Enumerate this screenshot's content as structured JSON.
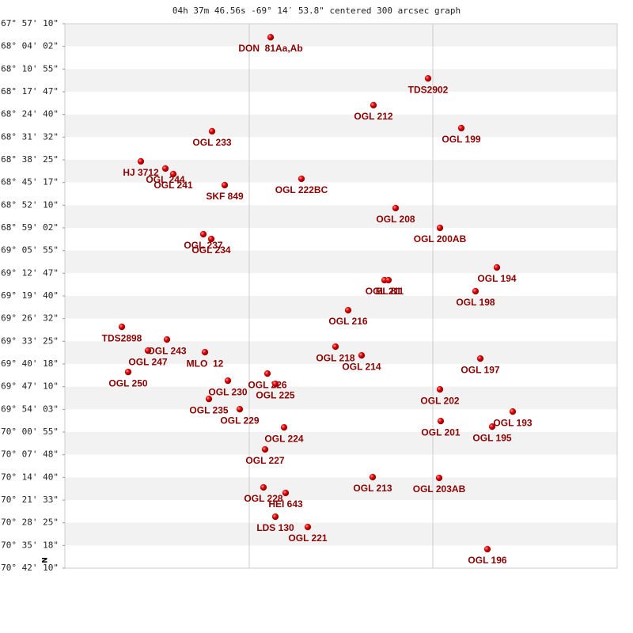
{
  "chart_data": {
    "type": "scatter",
    "title": "04h 37m 46.56s -69° 14′ 53.8\" centered 300 arcsec graph",
    "compass": "N",
    "color": "#cc0000",
    "label_color": "#8b0000",
    "xlim": [
      0,
      698
    ],
    "ylim": [
      -70.70278,
      -67.95278
    ],
    "yticks": [
      {
        "value": -67.95278,
        "label": "-67° 57' 10\""
      },
      {
        "value": -68.06722,
        "label": "-68° 04' 02\""
      },
      {
        "value": -68.18194,
        "label": "-68° 10' 55\""
      },
      {
        "value": -68.29639,
        "label": "-68° 17' 47\""
      },
      {
        "value": -68.41111,
        "label": "-68° 24' 40\""
      },
      {
        "value": -68.52556,
        "label": "-68° 31' 32\""
      },
      {
        "value": -68.64028,
        "label": "-68° 38' 25\""
      },
      {
        "value": -68.75472,
        "label": "-68° 45' 17\""
      },
      {
        "value": -68.86944,
        "label": "-68° 52' 10\""
      },
      {
        "value": -68.98389,
        "label": "-68° 59' 02\""
      },
      {
        "value": -69.09861,
        "label": "-69° 05' 55\""
      },
      {
        "value": -69.21306,
        "label": "-69° 12' 47\""
      },
      {
        "value": -69.32778,
        "label": "-69° 19' 40\""
      },
      {
        "value": -69.44222,
        "label": "-69° 26' 32\""
      },
      {
        "value": -69.55694,
        "label": "-69° 33' 25\""
      },
      {
        "value": -69.67167,
        "label": "-69° 40' 18\""
      },
      {
        "value": -69.78611,
        "label": "-69° 47' 10\""
      },
      {
        "value": -69.90083,
        "label": "-69° 54' 03\""
      },
      {
        "value": -70.01528,
        "label": "-70° 00' 55\""
      },
      {
        "value": -70.13,
        "label": "-70° 07' 48\""
      },
      {
        "value": -70.24444,
        "label": "-70° 14' 40\""
      },
      {
        "value": -70.35917,
        "label": "-70° 21' 33\""
      },
      {
        "value": -70.47361,
        "label": "-70° 28' 25\""
      },
      {
        "value": -70.58833,
        "label": "-70° 35' 18\""
      },
      {
        "value": -70.70278,
        "label": "-70° 42' 10\""
      }
    ],
    "labels": [
      "DON  81Aa,Ab",
      "TDS2902",
      "OGL 212",
      "OGL 199",
      "OGL 233",
      "HJ 3712",
      "OGL 244",
      "OGL 241",
      "SKF 849",
      "OGL 222BC",
      "OGL 208",
      "OGL 200AB",
      "OGL 237",
      "OGL 234",
      "OGL 194",
      "OGL 211",
      "BL 81",
      "OGL 198",
      "OGL 216",
      "TDS2898",
      "OGL 243",
      "OGL 247",
      "MLO  12",
      "OGL 218",
      "OGL 214",
      "OGL 197",
      "OGL 250",
      "OGL 226",
      "OGL 230",
      "OGL 225",
      "OGL 235",
      "OGL 202",
      "OGL 229",
      "OGL 193",
      "OGL 201",
      "OGL 195",
      "OGL 224",
      "OGL 227",
      "OGL 213",
      "OGL 203AB",
      "OGL 228",
      "HEI 643",
      "LDS 130",
      "OGL 221",
      "OGL 196"
    ],
    "x": [
      260,
      459,
      390,
      501,
      186,
      96,
      127,
      137,
      202,
      299,
      418,
      474,
      175,
      185,
      546,
      404,
      409,
      519,
      358,
      72,
      129,
      105,
      177,
      342,
      375,
      525,
      80,
      256,
      206,
      266,
      182,
      474,
      221,
      566,
      475,
      540,
      277,
      253,
      389,
      473,
      251,
      279,
      266,
      307,
      534
    ],
    "values": [
      -68.021,
      -68.229,
      -68.364,
      -68.48,
      -68.496,
      -68.648,
      -68.684,
      -68.712,
      -68.768,
      -68.736,
      -68.884,
      -68.984,
      -69.016,
      -69.04,
      -69.184,
      -69.248,
      -69.248,
      -69.304,
      -69.4,
      -69.484,
      -69.548,
      -69.604,
      -69.612,
      -69.584,
      -69.628,
      -69.644,
      -69.712,
      -69.72,
      -69.756,
      -69.772,
      -69.848,
      -69.8,
      -69.9,
      -69.912,
      -69.96,
      -69.988,
      -69.992,
      -70.103,
      -70.243,
      -70.247,
      -70.295,
      -70.323,
      -70.443,
      -70.495,
      -70.607
    ]
  }
}
